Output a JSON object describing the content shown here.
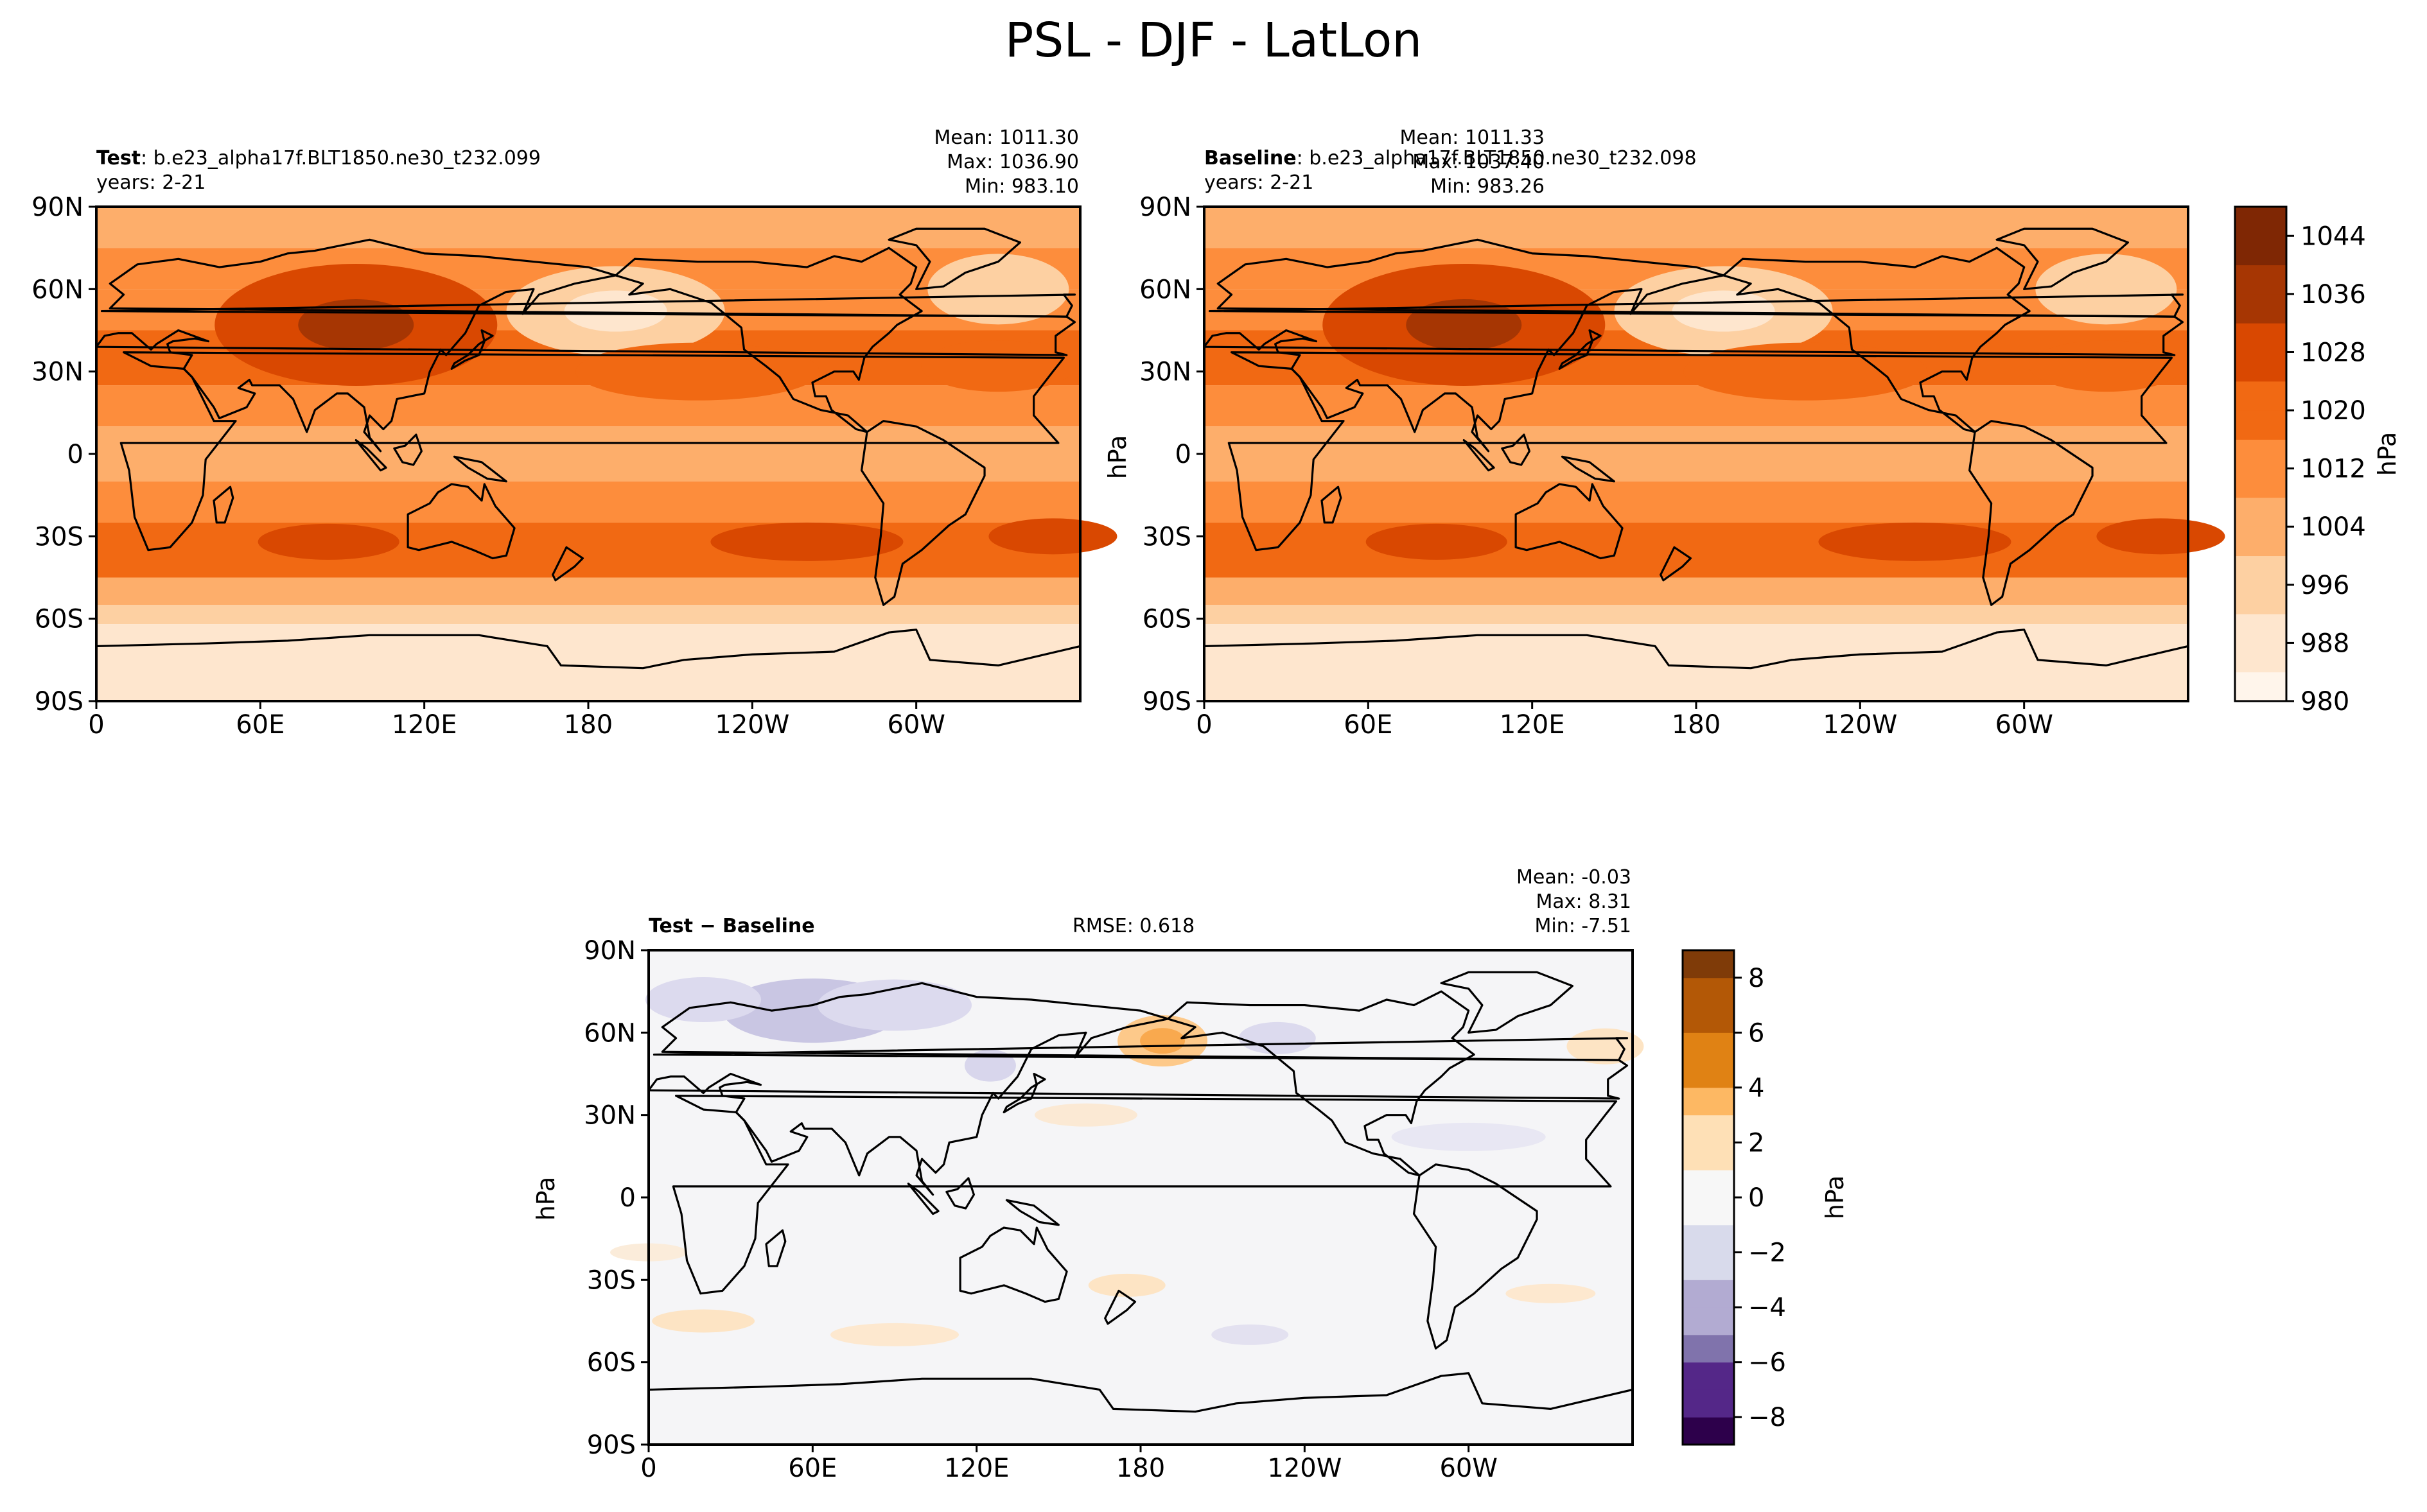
{
  "title": "PSL - DJF - LatLon",
  "panels": {
    "test": {
      "label_bold": "Test",
      "label_rest": ": b.e23_alpha17f.BLT1850.ne30_t232.099",
      "years": "years: 2-21",
      "mean": "Mean: 1011.30",
      "max": "Max: 1036.90",
      "min": "Min: 983.10"
    },
    "baseline": {
      "label_bold": "Baseline",
      "label_rest": ": b.e23_alpha17f.BLT1850.ne30_t232.098",
      "years": "years: 2-21",
      "mean": "Mean: 1011.33",
      "max": "Max: 1037.40",
      "min": "Min: 983.26",
      "units": "hPa"
    },
    "diff": {
      "label": "Test − Baseline",
      "rmse": "RMSE: 0.618",
      "mean": "Mean: -0.03",
      "max": "Max:  8.31",
      "min": "Min: -7.51",
      "units": "hPa"
    }
  },
  "chart_data": [
    {
      "type": "heatmap",
      "name": "Test",
      "x_ticks": [
        "0",
        "60E",
        "120E",
        "180",
        "120W",
        "60W"
      ],
      "y_ticks": [
        "90N",
        "60N",
        "30N",
        "0",
        "30S",
        "60S",
        "90S"
      ],
      "xlim": [
        0,
        360
      ],
      "ylim": [
        -90,
        90
      ],
      "stats": {
        "mean": 1011.3,
        "max": 1036.9,
        "min": 983.1
      }
    },
    {
      "type": "heatmap",
      "name": "Baseline",
      "x_ticks": [
        "0",
        "60E",
        "120E",
        "180",
        "120W",
        "60W"
      ],
      "y_ticks": [
        "90N",
        "60N",
        "30N",
        "0",
        "30S",
        "60S",
        "90S"
      ],
      "xlim": [
        0,
        360
      ],
      "ylim": [
        -90,
        90
      ],
      "stats": {
        "mean": 1011.33,
        "max": 1037.4,
        "min": 983.26
      }
    },
    {
      "type": "heatmap",
      "name": "Test − Baseline",
      "x_ticks": [
        "0",
        "60E",
        "120E",
        "180",
        "120W",
        "60W"
      ],
      "y_ticks": [
        "90N",
        "60N",
        "30N",
        "0",
        "30S",
        "60S",
        "90S"
      ],
      "xlim": [
        0,
        360
      ],
      "ylim": [
        -90,
        90
      ],
      "stats": {
        "mean": -0.03,
        "max": 8.31,
        "min": -7.51,
        "rmse": 0.618
      }
    }
  ],
  "colorbars": {
    "abs": {
      "units": "hPa",
      "range": [
        980,
        1048
      ],
      "ticks": [
        "1044",
        "1036",
        "1028",
        "1020",
        "1012",
        "1004",
        "996",
        "988",
        "980"
      ],
      "colors": [
        "#fff5eb",
        "#fee6ce",
        "#fdd0a2",
        "#fdae6b",
        "#fd8d3c",
        "#f16913",
        "#d94801",
        "#a63603",
        "#7f2704"
      ]
    },
    "diff": {
      "units": "hPa",
      "range": [
        -9,
        9
      ],
      "ticks": [
        "8",
        "6",
        "4",
        "2",
        "0",
        "−2",
        "−4",
        "−6",
        "−8"
      ],
      "neg_colors": [
        "#2d004b",
        "#542788",
        "#8073ac",
        "#b2abd2",
        "#d8daeb",
        "#f7f7f7"
      ],
      "pos_colors": [
        "#f7f7f7",
        "#fee0b6",
        "#fdb863",
        "#e08214",
        "#b35806",
        "#7f3b08"
      ]
    }
  }
}
